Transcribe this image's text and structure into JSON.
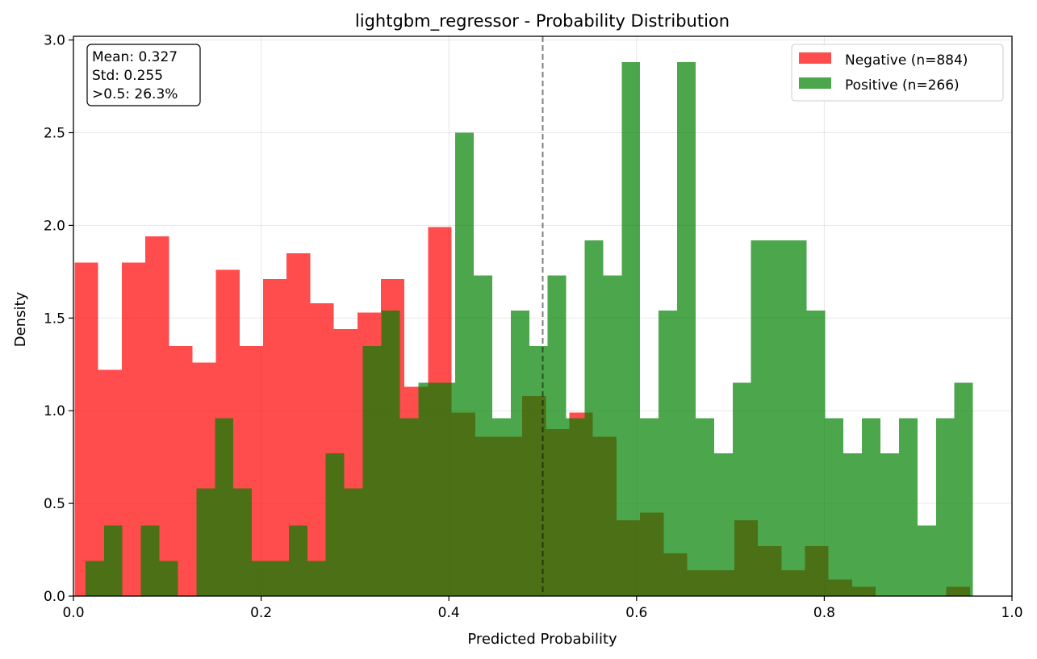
{
  "chart_data": {
    "type": "bar",
    "title": "lightgbm_regressor - Probability Distribution",
    "xlabel": "Predicted Probability",
    "ylabel": "Density",
    "xlim": [
      0.0,
      1.0
    ],
    "ylim": [
      0.0,
      3.02
    ],
    "grid": true,
    "legend_position": "top-right",
    "x_ticks": [
      "0.0",
      "0.2",
      "0.4",
      "0.6",
      "0.8",
      "1.0"
    ],
    "y_ticks": [
      "0.0",
      "0.5",
      "1.0",
      "1.5",
      "2.0",
      "2.5",
      "3.0"
    ],
    "threshold": 0.5,
    "stats_box": [
      "Mean: 0.327",
      "Std: 0.255",
      ">0.5: 26.3%"
    ],
    "series": [
      {
        "name": "Negative (n=884)",
        "color": "#ff0000",
        "alpha": 0.7,
        "bin_start": 0.0013,
        "bin_width": 0.0251,
        "values": [
          1.8,
          1.22,
          1.8,
          1.94,
          1.35,
          1.26,
          1.76,
          1.35,
          1.71,
          1.85,
          1.58,
          1.44,
          1.53,
          1.71,
          1.13,
          1.99,
          0.99,
          0.86,
          0.86,
          1.08,
          0.9,
          0.99,
          0.86,
          0.41,
          0.45,
          0.23,
          0.14,
          0.14,
          0.41,
          0.27,
          0.14,
          0.27,
          0.09,
          0.05,
          0.0,
          0.0,
          0.0,
          0.05
        ]
      },
      {
        "name": "Positive (n=266)",
        "color": "#008000",
        "alpha": 0.7,
        "bin_start": 0.0128,
        "bin_width": 0.0197,
        "values": [
          0.19,
          0.38,
          0.0,
          0.38,
          0.19,
          0.0,
          0.58,
          0.96,
          0.58,
          0.19,
          0.19,
          0.38,
          0.19,
          0.77,
          0.58,
          1.35,
          1.54,
          0.96,
          1.15,
          1.15,
          2.5,
          1.73,
          0.96,
          1.54,
          1.35,
          1.73,
          0.96,
          1.92,
          1.73,
          2.88,
          0.96,
          1.54,
          2.88,
          0.96,
          0.77,
          1.15,
          1.92,
          1.92,
          1.92,
          1.54,
          0.96,
          0.77,
          0.96,
          0.77,
          0.96,
          0.38,
          0.96,
          1.15
        ]
      }
    ]
  }
}
